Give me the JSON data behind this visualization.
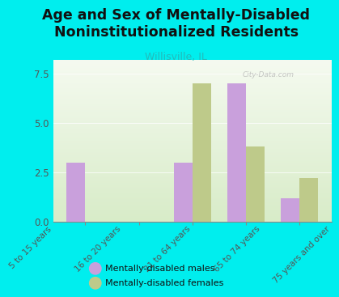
{
  "title": "Age and Sex of Mentally-Disabled\nNoninstitutionalized Residents",
  "subtitle": "Willisville, IL",
  "categories": [
    "5 to 15 years",
    "16 to 20 years",
    "21 to 64 years",
    "65 to 74 years",
    "75 years and over"
  ],
  "males": [
    3.0,
    0,
    3.0,
    7.0,
    1.2
  ],
  "females": [
    0,
    0,
    7.0,
    3.8,
    2.2
  ],
  "male_color": "#C9A0DC",
  "female_color": "#BECA8A",
  "background_color": "#00EEEE",
  "plot_bg_top": "#F5FAF0",
  "plot_bg_bottom": "#D8ECC8",
  "ylim": [
    0,
    8.2
  ],
  "yticks": [
    0,
    2.5,
    5.0,
    7.5
  ],
  "title_fontsize": 12.5,
  "subtitle_fontsize": 9,
  "subtitle_color": "#22BBBB",
  "tick_color": "#555555",
  "legend_label_males": "Mentally-disabled males",
  "legend_label_females": "Mentally-disabled females",
  "watermark": "City-Data.com",
  "bar_width": 0.35
}
